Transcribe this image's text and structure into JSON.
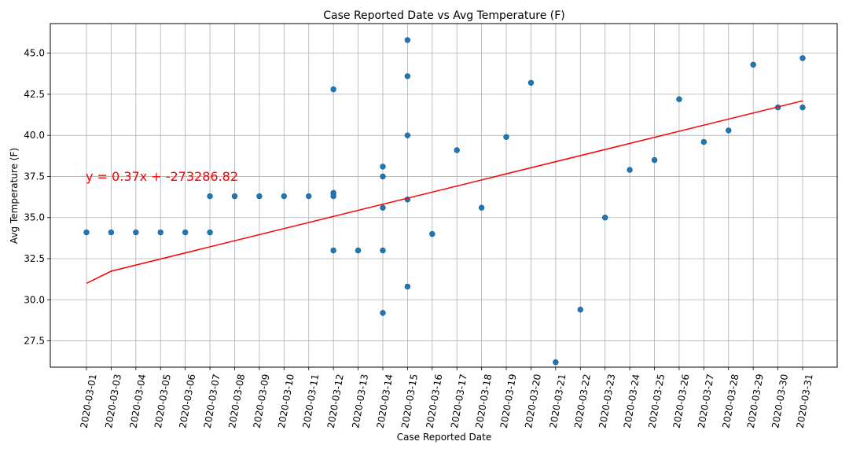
{
  "chart_data": {
    "type": "scatter",
    "title": "Case Reported Date vs Avg Temperature (F)",
    "xlabel": "Case Reported Date",
    "ylabel": "Avg Temperature (F)",
    "x_categories": [
      "2020-03-01",
      "2020-03-03",
      "2020-03-04",
      "2020-03-05",
      "2020-03-06",
      "2020-03-07",
      "2020-03-08",
      "2020-03-09",
      "2020-03-10",
      "2020-03-11",
      "2020-03-12",
      "2020-03-13",
      "2020-03-14",
      "2020-03-15",
      "2020-03-16",
      "2020-03-17",
      "2020-03-18",
      "2020-03-19",
      "2020-03-20",
      "2020-03-21",
      "2020-03-22",
      "2020-03-23",
      "2020-03-24",
      "2020-03-25",
      "2020-03-26",
      "2020-03-27",
      "2020-03-28",
      "2020-03-29",
      "2020-03-30",
      "2020-03-31"
    ],
    "y_ticks": [
      "27.5",
      "30.0",
      "32.5",
      "35.0",
      "37.5",
      "40.0",
      "42.5",
      "45.0"
    ],
    "ylim": [
      25.9,
      46.8
    ],
    "grid": true,
    "points": [
      {
        "x": "2020-03-01",
        "y": 34.1
      },
      {
        "x": "2020-03-03",
        "y": 34.1
      },
      {
        "x": "2020-03-04",
        "y": 34.1
      },
      {
        "x": "2020-03-05",
        "y": 34.1
      },
      {
        "x": "2020-03-06",
        "y": 34.1
      },
      {
        "x": "2020-03-07",
        "y": 34.1
      },
      {
        "x": "2020-03-07",
        "y": 36.3
      },
      {
        "x": "2020-03-08",
        "y": 36.3
      },
      {
        "x": "2020-03-09",
        "y": 36.3
      },
      {
        "x": "2020-03-10",
        "y": 36.3
      },
      {
        "x": "2020-03-11",
        "y": 36.3
      },
      {
        "x": "2020-03-12",
        "y": 42.8
      },
      {
        "x": "2020-03-12",
        "y": 36.5
      },
      {
        "x": "2020-03-12",
        "y": 36.3
      },
      {
        "x": "2020-03-12",
        "y": 33.0
      },
      {
        "x": "2020-03-13",
        "y": 33.0
      },
      {
        "x": "2020-03-14",
        "y": 38.1
      },
      {
        "x": "2020-03-14",
        "y": 37.5
      },
      {
        "x": "2020-03-14",
        "y": 35.6
      },
      {
        "x": "2020-03-14",
        "y": 33.0
      },
      {
        "x": "2020-03-14",
        "y": 29.2
      },
      {
        "x": "2020-03-15",
        "y": 45.8
      },
      {
        "x": "2020-03-15",
        "y": 43.6
      },
      {
        "x": "2020-03-15",
        "y": 40.0
      },
      {
        "x": "2020-03-15",
        "y": 36.1
      },
      {
        "x": "2020-03-15",
        "y": 30.8
      },
      {
        "x": "2020-03-16",
        "y": 34.0
      },
      {
        "x": "2020-03-17",
        "y": 39.1
      },
      {
        "x": "2020-03-18",
        "y": 35.6
      },
      {
        "x": "2020-03-19",
        "y": 39.9
      },
      {
        "x": "2020-03-20",
        "y": 43.2
      },
      {
        "x": "2020-03-21",
        "y": 26.2
      },
      {
        "x": "2020-03-22",
        "y": 29.4
      },
      {
        "x": "2020-03-23",
        "y": 35.0
      },
      {
        "x": "2020-03-24",
        "y": 37.9
      },
      {
        "x": "2020-03-25",
        "y": 38.5
      },
      {
        "x": "2020-03-26",
        "y": 42.2
      },
      {
        "x": "2020-03-27",
        "y": 39.6
      },
      {
        "x": "2020-03-28",
        "y": 40.3
      },
      {
        "x": "2020-03-29",
        "y": 44.3
      },
      {
        "x": "2020-03-30",
        "y": 41.7
      },
      {
        "x": "2020-03-31",
        "y": 44.7
      },
      {
        "x": "2020-03-31",
        "y": 41.7
      }
    ],
    "regression": {
      "label": "y = 0.37x + -273286.82",
      "points": [
        {
          "x": "2020-03-01",
          "y": 31.0
        },
        {
          "x": "2020-03-03",
          "y": 31.74
        },
        {
          "x": "2020-03-31",
          "y": 42.1
        }
      ]
    },
    "colors": {
      "points": "#1f77b4",
      "regression": "#ff0000",
      "grid": "#b0b0b0"
    }
  }
}
